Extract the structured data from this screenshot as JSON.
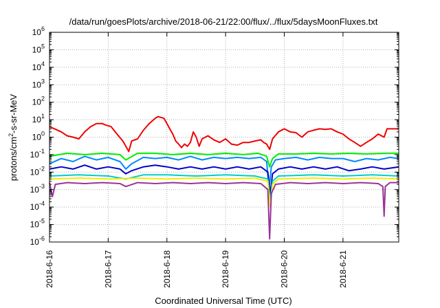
{
  "chart_data": {
    "type": "line",
    "title": "/data/run/goesPlots/archive/2018-06-21/22:00/flux/../flux/5daysMoonFluxes.txt",
    "xlabel": "Coordinated Universal Time (UTC)",
    "ylabel": "protons/cm²-s-sr-MeV",
    "ylabel_base": "protons/cm",
    "ylabel_sup": "2",
    "ylabel_rest": "-s-sr-MeV",
    "y_scale": "log",
    "ylim_exponents": [
      -6,
      6
    ],
    "y_ticks": [
      {
        "base": "10",
        "exp": "6"
      },
      {
        "base": "10",
        "exp": "5"
      },
      {
        "base": "10",
        "exp": "4"
      },
      {
        "base": "10",
        "exp": "3"
      },
      {
        "base": "10",
        "exp": "2"
      },
      {
        "base": "10",
        "exp": "1"
      },
      {
        "base": "10",
        "exp": "0"
      },
      {
        "base": "10",
        "exp": "-1"
      },
      {
        "base": "10",
        "exp": "-2"
      },
      {
        "base": "10",
        "exp": "-3"
      },
      {
        "base": "10",
        "exp": "-4"
      },
      {
        "base": "10",
        "exp": "-5"
      },
      {
        "base": "10",
        "exp": "-6"
      }
    ],
    "x_range_days": [
      0,
      5.95
    ],
    "x_ticks": [
      "2018-6-16",
      "2018-6-17",
      "2018-6-18",
      "2018-6-19",
      "2018-6-20",
      "2018-6-21"
    ],
    "grid": true,
    "series": [
      {
        "color": "#ee0000",
        "points": [
          [
            0.0,
            4.0
          ],
          [
            0.2,
            2.0
          ],
          [
            0.3,
            1.2
          ],
          [
            0.4,
            1.0
          ],
          [
            0.5,
            0.8
          ],
          [
            0.6,
            2.0
          ],
          [
            0.7,
            4.0
          ],
          [
            0.8,
            6.0
          ],
          [
            0.9,
            6.0
          ],
          [
            0.95,
            5.0
          ],
          [
            1.05,
            4.0
          ],
          [
            1.15,
            1.5
          ],
          [
            1.25,
            0.6
          ],
          [
            1.3,
            0.3
          ],
          [
            1.35,
            0.15
          ],
          [
            1.4,
            0.6
          ],
          [
            1.5,
            0.8
          ],
          [
            1.6,
            2.5
          ],
          [
            1.7,
            6.0
          ],
          [
            1.8,
            12.0
          ],
          [
            1.85,
            15.0
          ],
          [
            1.95,
            12.0
          ],
          [
            2.0,
            6.0
          ],
          [
            2.05,
            3.0
          ],
          [
            2.1,
            1.5
          ],
          [
            2.15,
            0.6
          ],
          [
            2.2,
            0.4
          ],
          [
            2.25,
            0.25
          ],
          [
            2.3,
            0.4
          ],
          [
            2.35,
            0.3
          ],
          [
            2.4,
            0.5
          ],
          [
            2.45,
            2.0
          ],
          [
            2.5,
            1.0
          ],
          [
            2.55,
            0.3
          ],
          [
            2.6,
            0.8
          ],
          [
            2.7,
            1.2
          ],
          [
            2.8,
            0.7
          ],
          [
            2.9,
            0.5
          ],
          [
            3.0,
            0.8
          ],
          [
            3.1,
            0.4
          ],
          [
            3.2,
            0.35
          ],
          [
            3.3,
            0.5
          ],
          [
            3.4,
            0.5
          ],
          [
            3.5,
            0.6
          ],
          [
            3.6,
            0.7
          ],
          [
            3.65,
            0.5
          ],
          [
            3.7,
            0.4
          ],
          [
            3.75,
            0.2
          ],
          [
            3.8,
            0.8
          ],
          [
            3.9,
            2.0
          ],
          [
            4.0,
            3.0
          ],
          [
            4.1,
            2.0
          ],
          [
            4.2,
            1.8
          ],
          [
            4.3,
            1.0
          ],
          [
            4.4,
            2.0
          ],
          [
            4.5,
            2.5
          ],
          [
            4.6,
            3.0
          ],
          [
            4.7,
            2.8
          ],
          [
            4.8,
            3.0
          ],
          [
            4.9,
            2.0
          ],
          [
            5.0,
            1.5
          ],
          [
            5.1,
            0.8
          ],
          [
            5.2,
            0.5
          ],
          [
            5.3,
            0.3
          ],
          [
            5.4,
            0.5
          ],
          [
            5.5,
            0.8
          ],
          [
            5.6,
            1.5
          ],
          [
            5.7,
            1.0
          ],
          [
            5.75,
            3.0
          ],
          [
            5.85,
            3.0
          ],
          [
            5.95,
            3.0
          ]
        ]
      },
      {
        "color": "#00ee00",
        "points": [
          [
            0.0,
            0.08
          ],
          [
            0.3,
            0.12
          ],
          [
            0.6,
            0.1
          ],
          [
            0.9,
            0.12
          ],
          [
            1.2,
            0.1
          ],
          [
            1.3,
            0.05
          ],
          [
            1.5,
            0.12
          ],
          [
            1.8,
            0.12
          ],
          [
            2.1,
            0.1
          ],
          [
            2.4,
            0.12
          ],
          [
            2.7,
            0.1
          ],
          [
            3.0,
            0.12
          ],
          [
            3.3,
            0.1
          ],
          [
            3.55,
            0.12
          ],
          [
            3.7,
            0.08
          ],
          [
            3.75,
            0.02
          ],
          [
            3.8,
            0.06
          ],
          [
            3.9,
            0.11
          ],
          [
            4.2,
            0.11
          ],
          [
            4.5,
            0.12
          ],
          [
            4.8,
            0.11
          ],
          [
            5.1,
            0.12
          ],
          [
            5.4,
            0.11
          ],
          [
            5.7,
            0.12
          ],
          [
            5.95,
            0.12
          ]
        ]
      },
      {
        "color": "#0088ff",
        "points": [
          [
            0.0,
            0.03
          ],
          [
            0.2,
            0.06
          ],
          [
            0.4,
            0.04
          ],
          [
            0.6,
            0.08
          ],
          [
            0.8,
            0.05
          ],
          [
            1.0,
            0.07
          ],
          [
            1.2,
            0.04
          ],
          [
            1.3,
            0.015
          ],
          [
            1.4,
            0.03
          ],
          [
            1.6,
            0.07
          ],
          [
            1.8,
            0.06
          ],
          [
            2.0,
            0.07
          ],
          [
            2.2,
            0.05
          ],
          [
            2.4,
            0.08
          ],
          [
            2.6,
            0.05
          ],
          [
            2.8,
            0.07
          ],
          [
            3.0,
            0.06
          ],
          [
            3.2,
            0.07
          ],
          [
            3.4,
            0.06
          ],
          [
            3.6,
            0.07
          ],
          [
            3.7,
            0.04
          ],
          [
            3.74,
            0.001
          ],
          [
            3.78,
            0.02
          ],
          [
            3.85,
            0.05
          ],
          [
            4.0,
            0.06
          ],
          [
            4.2,
            0.07
          ],
          [
            4.4,
            0.05
          ],
          [
            4.6,
            0.07
          ],
          [
            4.8,
            0.06
          ],
          [
            5.0,
            0.06
          ],
          [
            5.2,
            0.04
          ],
          [
            5.4,
            0.06
          ],
          [
            5.6,
            0.05
          ],
          [
            5.8,
            0.07
          ],
          [
            5.95,
            0.06
          ]
        ]
      },
      {
        "color": "#0000cc",
        "points": [
          [
            0.0,
            0.015
          ],
          [
            0.2,
            0.02
          ],
          [
            0.4,
            0.015
          ],
          [
            0.6,
            0.025
          ],
          [
            0.8,
            0.015
          ],
          [
            1.0,
            0.02
          ],
          [
            1.2,
            0.015
          ],
          [
            1.3,
            0.008
          ],
          [
            1.4,
            0.012
          ],
          [
            1.6,
            0.02
          ],
          [
            1.8,
            0.025
          ],
          [
            2.0,
            0.02
          ],
          [
            2.2,
            0.015
          ],
          [
            2.4,
            0.02
          ],
          [
            2.6,
            0.015
          ],
          [
            2.8,
            0.02
          ],
          [
            3.0,
            0.015
          ],
          [
            3.2,
            0.02
          ],
          [
            3.4,
            0.015
          ],
          [
            3.6,
            0.02
          ],
          [
            3.72,
            0.01
          ],
          [
            3.76,
            0.0005
          ],
          [
            3.8,
            0.008
          ],
          [
            3.9,
            0.015
          ],
          [
            4.1,
            0.02
          ],
          [
            4.3,
            0.015
          ],
          [
            4.5,
            0.02
          ],
          [
            4.7,
            0.015
          ],
          [
            4.9,
            0.02
          ],
          [
            5.1,
            0.012
          ],
          [
            5.3,
            0.015
          ],
          [
            5.5,
            0.02
          ],
          [
            5.7,
            0.015
          ],
          [
            5.95,
            0.02
          ]
        ]
      },
      {
        "color": "#00cccc",
        "points": [
          [
            0.0,
            0.006
          ],
          [
            0.5,
            0.007
          ],
          [
            1.0,
            0.006
          ],
          [
            1.3,
            0.004
          ],
          [
            1.6,
            0.007
          ],
          [
            2.0,
            0.007
          ],
          [
            2.5,
            0.006
          ],
          [
            3.0,
            0.007
          ],
          [
            3.5,
            0.006
          ],
          [
            3.72,
            0.004
          ],
          [
            3.76,
            0.0002
          ],
          [
            3.8,
            0.003
          ],
          [
            3.9,
            0.006
          ],
          [
            4.5,
            0.007
          ],
          [
            5.0,
            0.006
          ],
          [
            5.5,
            0.007
          ],
          [
            5.95,
            0.006
          ]
        ]
      },
      {
        "color": "#eeee00",
        "points": [
          [
            0.0,
            0.004
          ],
          [
            0.5,
            0.0045
          ],
          [
            1.0,
            0.004
          ],
          [
            1.5,
            0.0045
          ],
          [
            2.0,
            0.004
          ],
          [
            2.5,
            0.0045
          ],
          [
            3.0,
            0.004
          ],
          [
            3.5,
            0.0045
          ],
          [
            3.72,
            0.003
          ],
          [
            3.76,
            0.0001
          ],
          [
            3.8,
            0.002
          ],
          [
            3.9,
            0.004
          ],
          [
            4.5,
            0.0045
          ],
          [
            5.0,
            0.004
          ],
          [
            5.5,
            0.0045
          ],
          [
            5.95,
            0.004
          ]
        ]
      },
      {
        "color": "#993399",
        "points": [
          [
            0.0,
            0.0025
          ],
          [
            0.05,
            0.0004
          ],
          [
            0.1,
            0.002
          ],
          [
            0.3,
            0.0025
          ],
          [
            0.6,
            0.0022
          ],
          [
            0.9,
            0.0025
          ],
          [
            1.2,
            0.0022
          ],
          [
            1.3,
            0.0015
          ],
          [
            1.5,
            0.0025
          ],
          [
            1.8,
            0.0022
          ],
          [
            2.1,
            0.0025
          ],
          [
            2.4,
            0.0022
          ],
          [
            2.7,
            0.0025
          ],
          [
            3.0,
            0.0022
          ],
          [
            3.3,
            0.0025
          ],
          [
            3.6,
            0.0022
          ],
          [
            3.72,
            0.001
          ],
          [
            3.75,
            1.5e-06
          ],
          [
            3.78,
            0.0006
          ],
          [
            3.85,
            0.002
          ],
          [
            4.1,
            0.0025
          ],
          [
            4.4,
            0.0022
          ],
          [
            4.7,
            0.0025
          ],
          [
            5.0,
            0.0022
          ],
          [
            5.3,
            0.0025
          ],
          [
            5.6,
            0.0022
          ],
          [
            5.68,
            0.0015
          ],
          [
            5.7,
            3e-05
          ],
          [
            5.72,
            0.0015
          ],
          [
            5.8,
            0.0025
          ],
          [
            5.95,
            0.0025
          ]
        ]
      }
    ]
  }
}
